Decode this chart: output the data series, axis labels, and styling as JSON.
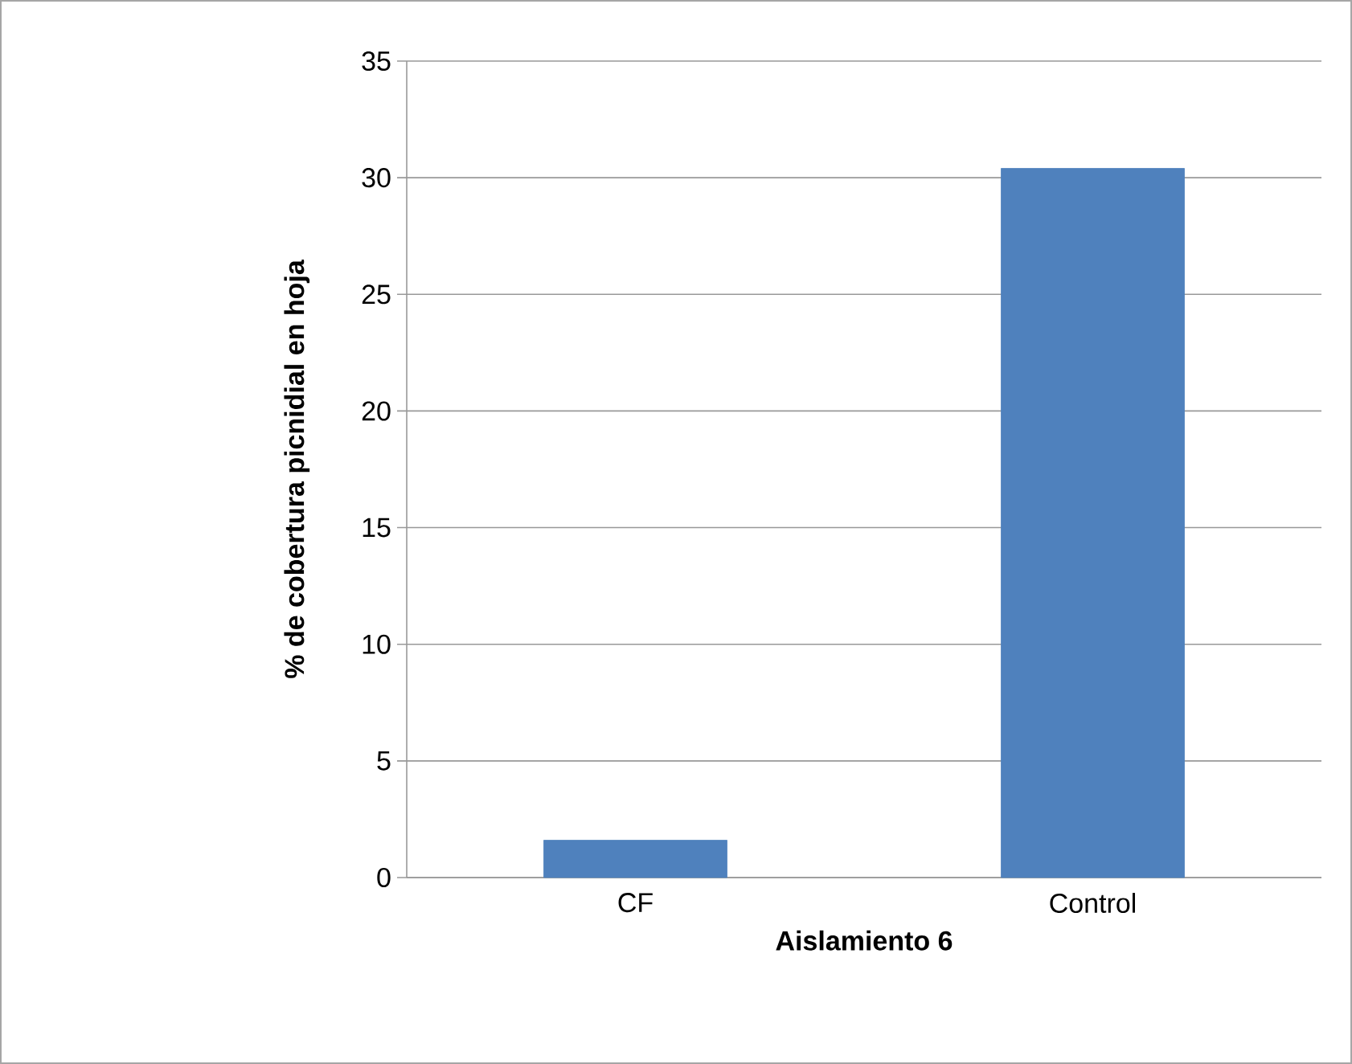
{
  "chart_data": {
    "type": "bar",
    "ylabel": "% de cobertura picnidial en hoja",
    "xlabel": "Aislamiento 6",
    "categories": [
      "CF",
      "Control"
    ],
    "values": [
      1.6,
      30.4
    ],
    "color": "#4f81bd",
    "ylim": [
      0,
      35
    ],
    "yticks": [
      0,
      5,
      10,
      15,
      20,
      25,
      30,
      35
    ],
    "grid": "y"
  }
}
